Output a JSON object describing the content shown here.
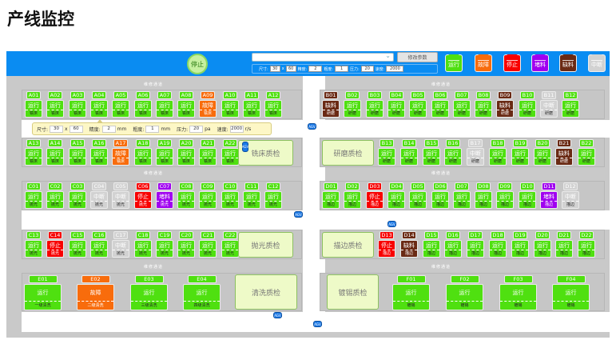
{
  "page_title": "产线监控",
  "header": {
    "stop_label": "停止",
    "select_value": "",
    "modify_label": "修改参数",
    "params": [
      {
        "label": "尺寸:",
        "value": "30"
      },
      {
        "label": "x",
        "value": "60"
      },
      {
        "label": "精度:",
        "value": "2"
      },
      {
        "label": "粗度:",
        "value": "1"
      },
      {
        "label": "压力:",
        "value": "20"
      },
      {
        "label": "速度:",
        "value": "2000"
      }
    ]
  },
  "statuses": {
    "运行": "#4fe010",
    "故障": "#f86c0c",
    "停止": "#f80000",
    "堵料": "#a000f0",
    "缺料": "#6a2a14",
    "中断": "#d2d2d2"
  },
  "legend": [
    "运行",
    "故障",
    "停止",
    "堵料",
    "缺料",
    "中断"
  ],
  "passage_label": "维修通道",
  "agv_label": "AGV",
  "rows": {
    "A1": {
      "process": "铣床",
      "ids": [
        "A01",
        "A02",
        "A03",
        "A04",
        "A05",
        "A06",
        "A07",
        "A08",
        "A09",
        "A10",
        "A11",
        "A12"
      ],
      "status": [
        "运行",
        "运行",
        "运行",
        "运行",
        "运行",
        "运行",
        "运行",
        "运行",
        "故障",
        "运行",
        "运行",
        "运行"
      ]
    },
    "B1": {
      "process": "研磨",
      "ids": [
        "B01",
        "B02",
        "B03",
        "B04",
        "B05",
        "B06",
        "B07",
        "B08",
        "B09",
        "B10",
        "B11",
        "B12"
      ],
      "status": [
        "缺料",
        "运行",
        "运行",
        "运行",
        "运行",
        "运行",
        "运行",
        "运行",
        "缺料",
        "运行",
        "中断",
        "运行"
      ]
    },
    "A2": {
      "process": "铣床",
      "ids": [
        "A13",
        "A14",
        "A15",
        "A16",
        "A17",
        "A18",
        "A19",
        "A20",
        "A21",
        "A22"
      ],
      "status": [
        "运行",
        "运行",
        "运行",
        "运行",
        "故障",
        "运行",
        "运行",
        "运行",
        "运行",
        "运行"
      ],
      "qc": "铣床质检"
    },
    "B2": {
      "process": "研磨",
      "ids": [
        "B13",
        "B14",
        "B15",
        "B16",
        "B17",
        "B18",
        "B19",
        "B20",
        "B21",
        "B22"
      ],
      "status": [
        "运行",
        "运行",
        "运行",
        "运行",
        "中断",
        "运行",
        "运行",
        "运行",
        "缺料",
        "运行"
      ],
      "qc": "研磨质检"
    },
    "C1": {
      "process": "抛光",
      "ids": [
        "C01",
        "C02",
        "C03",
        "C04",
        "C05",
        "C06",
        "C07",
        "C08",
        "C09",
        "C10",
        "C11",
        "C12"
      ],
      "status": [
        "运行",
        "运行",
        "运行",
        "中断",
        "中断",
        "停止",
        "堵料",
        "运行",
        "运行",
        "运行",
        "运行",
        "运行"
      ]
    },
    "D1": {
      "process": "描边",
      "ids": [
        "D01",
        "D02",
        "D03",
        "D04",
        "D05",
        "D06",
        "D07",
        "D08",
        "D09",
        "D10",
        "D11",
        "D12"
      ],
      "status": [
        "运行",
        "运行",
        "停止",
        "运行",
        "运行",
        "运行",
        "运行",
        "运行",
        "运行",
        "运行",
        "堵料",
        "中断"
      ]
    },
    "C2": {
      "process": "抛光",
      "ids": [
        "C13",
        "C14",
        "C15",
        "C16",
        "C17",
        "C18",
        "C19",
        "C20",
        "C21",
        "C22"
      ],
      "status": [
        "运行",
        "停止",
        "运行",
        "运行",
        "中断",
        "运行",
        "运行",
        "运行",
        "运行",
        "运行"
      ],
      "qc": "抛光质检"
    },
    "D2": {
      "process": "描边",
      "ids": [
        "D13",
        "D14",
        "D15",
        "D16",
        "D17",
        "D18",
        "D19",
        "D20",
        "D21",
        "D22"
      ],
      "status": [
        "停止",
        "缺料",
        "运行",
        "运行",
        "运行",
        "运行",
        "运行",
        "运行",
        "运行",
        "运行"
      ],
      "qc": "描边质检"
    },
    "E": {
      "ids": [
        "E01",
        "E02",
        "E03",
        "E04"
      ],
      "status": [
        "运行",
        "故障",
        "运行",
        "运行"
      ],
      "processes": [
        "一级清洗",
        "二级清洗",
        "三级清洗",
        "四级清洗"
      ],
      "qc": "清洗质检"
    },
    "F": {
      "ids": [
        "F01",
        "F02",
        "F03",
        "F04"
      ],
      "status": [
        "运行",
        "运行",
        "运行",
        "运行"
      ],
      "processes": [
        "镀锡",
        "镀锡",
        "镀锡",
        "镀锡"
      ],
      "qc": "镀锡质检"
    }
  },
  "tooltip": {
    "size_label": "尺寸:",
    "size_w": "30",
    "x_label": "x",
    "size_h": "60",
    "precision_label": "精度:",
    "precision": "2",
    "precision_unit": "mm",
    "roughness_label": "粗度:",
    "roughness": "1",
    "roughness_unit": "mm",
    "pressure_label": "压力:",
    "pressure": "20",
    "pressure_unit": "pa",
    "speed_label": "速度:",
    "speed": "2000",
    "speed_unit": "r/s"
  }
}
